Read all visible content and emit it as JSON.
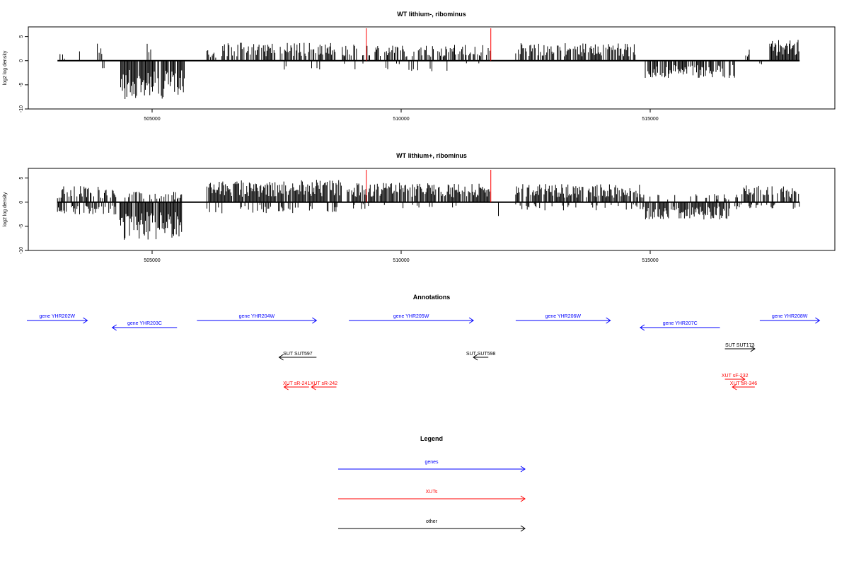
{
  "colors": {
    "genes": "#0000ff",
    "xuts": "#ff0000",
    "other": "#000000",
    "bars": "#000000",
    "marker": "#ff0000"
  },
  "chart_data": [
    {
      "type": "bar",
      "title": "WT lithium-, ribominus",
      "xlabel": "",
      "ylabel": "log2 log density",
      "xlim": [
        502000,
        518500
      ],
      "ylim": [
        -10,
        7
      ],
      "x_ticks": [
        505000,
        510000,
        515000
      ],
      "x_tick_labels": [
        "505000",
        "510000",
        "515000"
      ],
      "y_ticks": [
        -10,
        -5,
        0,
        5
      ],
      "y_tick_labels": [
        "-10",
        "-5",
        "0",
        "5"
      ],
      "baseline_range": [
        503100,
        518000
      ],
      "markers": [
        509300,
        511800
      ],
      "regions": [
        {
          "start": 503150,
          "end": 503300,
          "sign": 1,
          "mean": 1.0,
          "density": 0.25
        },
        {
          "start": 503400,
          "end": 503550,
          "sign": 1,
          "mean": 2.2,
          "density": 0.4
        },
        {
          "start": 503900,
          "end": 504000,
          "sign": 1,
          "mean": 3.0,
          "density": 0.5
        },
        {
          "start": 504000,
          "end": 504050,
          "sign": -1,
          "mean": 1.5,
          "density": 0.4
        },
        {
          "start": 504350,
          "end": 505650,
          "sign": -1,
          "mean": 5.5,
          "density": 0.9
        },
        {
          "start": 504900,
          "end": 505000,
          "sign": 1,
          "mean": 2.5,
          "density": 0.5
        },
        {
          "start": 506100,
          "end": 506300,
          "sign": 1,
          "mean": 1.5,
          "density": 0.5
        },
        {
          "start": 506400,
          "end": 508700,
          "sign": 1,
          "mean": 2.6,
          "density": 0.6
        },
        {
          "start": 508800,
          "end": 511800,
          "sign": 1,
          "mean": 2.3,
          "density": 0.55
        },
        {
          "start": 507600,
          "end": 511700,
          "sign": -1,
          "mean": 1.5,
          "density": 0.1
        },
        {
          "start": 512300,
          "end": 514700,
          "sign": 1,
          "mean": 2.5,
          "density": 0.6
        },
        {
          "start": 514900,
          "end": 516700,
          "sign": -1,
          "mean": 2.5,
          "density": 0.7
        },
        {
          "start": 516900,
          "end": 517000,
          "sign": 1,
          "mean": 2.2,
          "density": 0.5
        },
        {
          "start": 517200,
          "end": 517300,
          "sign": -1,
          "mean": 1.2,
          "density": 0.3
        },
        {
          "start": 517400,
          "end": 518000,
          "sign": 1,
          "mean": 3.0,
          "density": 1.0
        }
      ]
    },
    {
      "type": "bar",
      "title": "WT lithium+, ribominus",
      "xlabel": "",
      "ylabel": "log2 log density",
      "xlim": [
        502000,
        518500
      ],
      "ylim": [
        -10,
        7
      ],
      "x_ticks": [
        505000,
        510000,
        515000
      ],
      "x_tick_labels": [
        "505000",
        "510000",
        "515000"
      ],
      "y_ticks": [
        -10,
        -5,
        0,
        5
      ],
      "y_tick_labels": [
        "-10",
        "-5",
        "0",
        "5"
      ],
      "baseline_range": [
        503100,
        518000
      ],
      "markers": [
        509300,
        511800
      ],
      "regions": [
        {
          "start": 503100,
          "end": 504300,
          "sign": 1,
          "mean": 2.3,
          "density": 0.6
        },
        {
          "start": 503100,
          "end": 504300,
          "sign": -1,
          "mean": 1.8,
          "density": 0.6
        },
        {
          "start": 504350,
          "end": 505600,
          "sign": -1,
          "mean": 5.5,
          "density": 0.9
        },
        {
          "start": 504350,
          "end": 505600,
          "sign": 1,
          "mean": 1.5,
          "density": 0.3
        },
        {
          "start": 506100,
          "end": 508800,
          "sign": 1,
          "mean": 3.2,
          "density": 0.9
        },
        {
          "start": 506100,
          "end": 508800,
          "sign": -1,
          "mean": 1.6,
          "density": 0.25
        },
        {
          "start": 508900,
          "end": 511800,
          "sign": 1,
          "mean": 2.8,
          "density": 0.85
        },
        {
          "start": 508900,
          "end": 511800,
          "sign": -1,
          "mean": 1.0,
          "density": 0.15
        },
        {
          "start": 511900,
          "end": 512000,
          "sign": -1,
          "mean": 2.0,
          "density": 0.5
        },
        {
          "start": 512300,
          "end": 514800,
          "sign": 1,
          "mean": 2.6,
          "density": 0.75
        },
        {
          "start": 512300,
          "end": 514800,
          "sign": -1,
          "mean": 1.2,
          "density": 0.2
        },
        {
          "start": 514800,
          "end": 516600,
          "sign": -1,
          "mean": 2.5,
          "density": 0.8
        },
        {
          "start": 514800,
          "end": 516600,
          "sign": 1,
          "mean": 1.2,
          "density": 0.3
        },
        {
          "start": 516700,
          "end": 518000,
          "sign": 1,
          "mean": 2.4,
          "density": 0.65
        },
        {
          "start": 516700,
          "end": 518000,
          "sign": -1,
          "mean": 1.0,
          "density": 0.3
        }
      ]
    }
  ],
  "annotations": {
    "title": "Annotations",
    "genes": [
      {
        "label": "gene YHR202W",
        "start": 502000,
        "end": 503700,
        "strand": "+"
      },
      {
        "label": "gene YHR203C",
        "start": 504200,
        "end": 505500,
        "strand": "-"
      },
      {
        "label": "gene YHR204W",
        "start": 505900,
        "end": 508300,
        "strand": "+"
      },
      {
        "label": "gene YHR205W",
        "start": 508950,
        "end": 511450,
        "strand": "+"
      },
      {
        "label": "gene YHR206W",
        "start": 512300,
        "end": 514200,
        "strand": "+"
      },
      {
        "label": "gene YHR207C",
        "start": 514800,
        "end": 516400,
        "strand": "-"
      },
      {
        "label": "gene YHR208W",
        "start": 517200,
        "end": 518400,
        "strand": "+"
      }
    ],
    "other": [
      {
        "label": "SUT SUT597",
        "start": 507550,
        "end": 508300,
        "strand": "-"
      },
      {
        "label": "SUT SUT598",
        "start": 511450,
        "end": 511750,
        "strand": "-"
      },
      {
        "label": "SUT SUT173",
        "start": 516500,
        "end": 517100,
        "strand": "+"
      }
    ],
    "xuts": [
      {
        "label": "XUT sR-241",
        "start": 507650,
        "end": 508150,
        "strand": "-"
      },
      {
        "label": "XUT sR-242",
        "start": 508200,
        "end": 508700,
        "strand": "-"
      },
      {
        "label": "XUT sF-232",
        "start": 516500,
        "end": 516900,
        "strand": "+"
      },
      {
        "label": "XUT sR-346",
        "start": 516650,
        "end": 517100,
        "strand": "-"
      }
    ]
  },
  "legend": {
    "title": "Legend",
    "items": [
      {
        "label": "genes",
        "kind": "genes"
      },
      {
        "label": "XUTs",
        "kind": "xuts"
      },
      {
        "label": "other",
        "kind": "other"
      }
    ]
  }
}
